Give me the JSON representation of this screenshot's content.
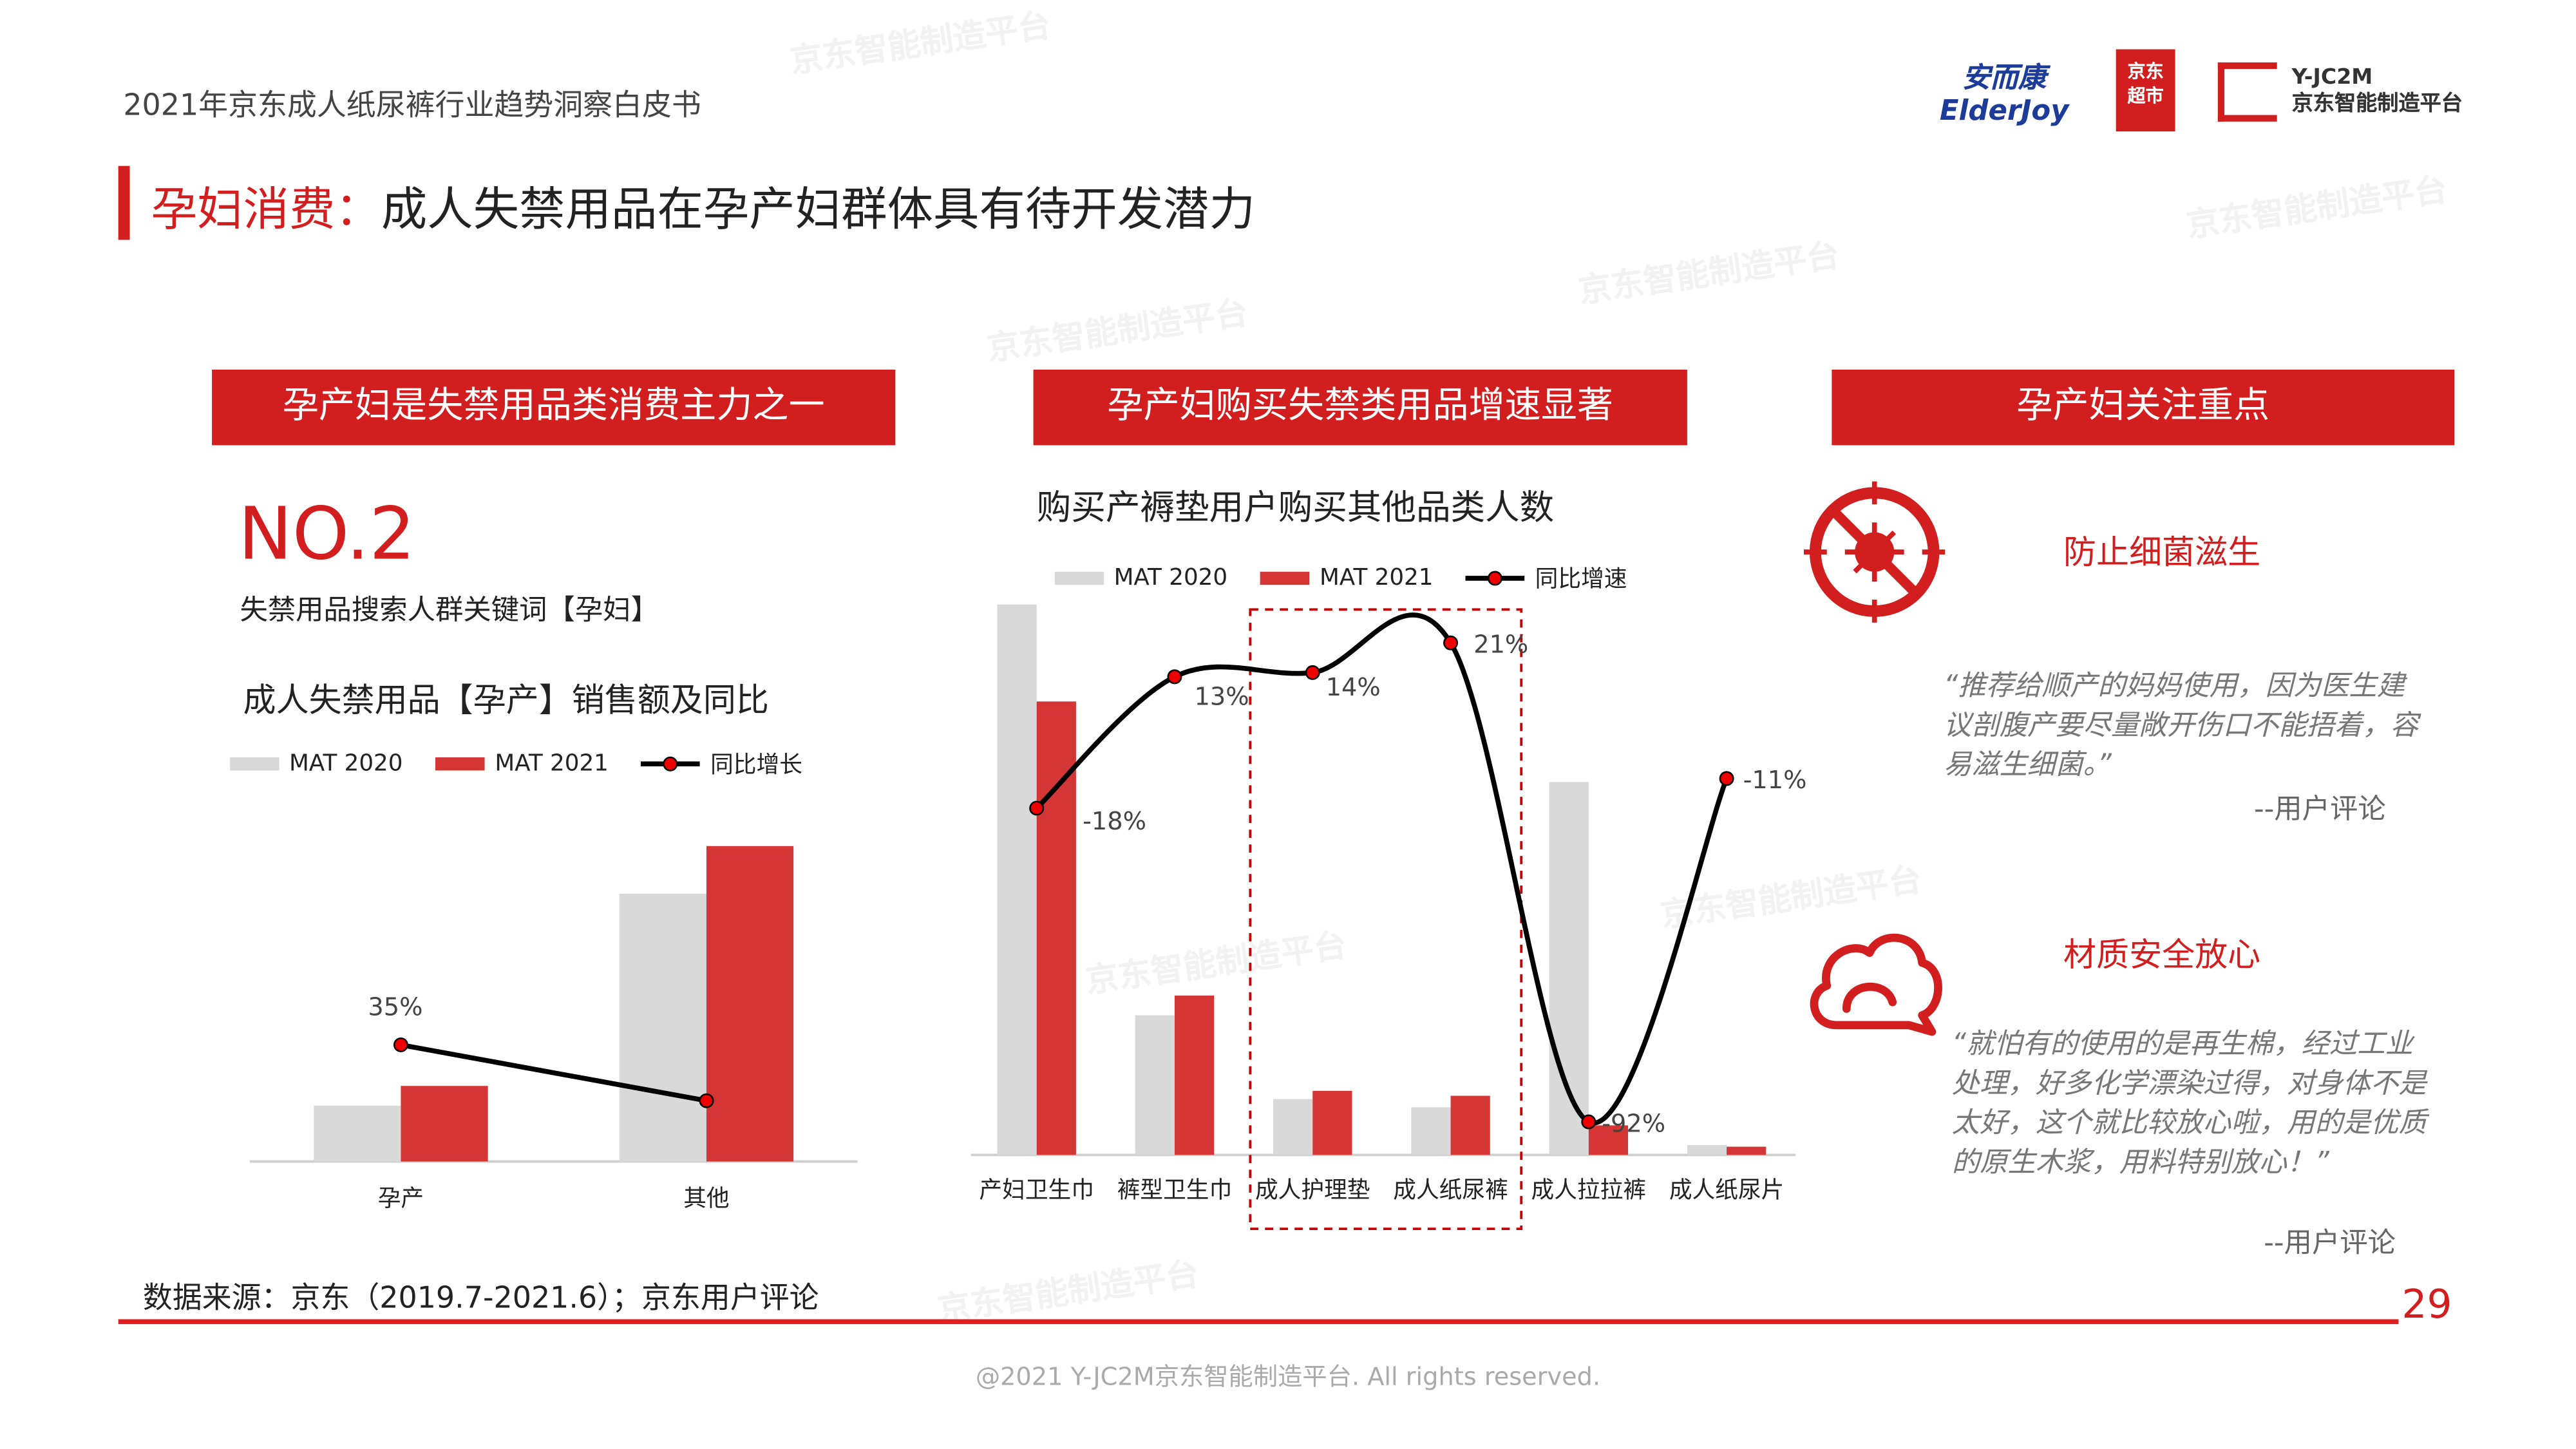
{
  "header": {
    "report_title": "2021年京东成人纸尿裤行业趋势洞察白皮书",
    "logos": {
      "elderjoy": "安而康 ElderJoy",
      "jd_supermarket": "京东 超市",
      "yjc2m_name": "Y-JC2M",
      "yjc2m_sub": "京东智能制造平台"
    }
  },
  "slide": {
    "title_keyword": "孕妇消费：",
    "title_text": "成人失禁用品在孕产妇群体具有待开发潜力",
    "accent_color": "#d21e1e"
  },
  "left": {
    "header": "孕产妇是失禁用品类消费主力之一",
    "rank": "NO.2",
    "rank_caption": "失禁用品搜索人群关键词【孕妇】",
    "chart_title": "成人失禁用品【孕产】销售额及同比"
  },
  "middle": {
    "header": "孕产妇购买失禁类用品增速显著",
    "chart_title": "购买产褥垫用户购买其他品类人数"
  },
  "right": {
    "header": "孕产妇关注重点",
    "points": [
      {
        "icon": "no-bacteria-icon",
        "title": "防止细菌滋生",
        "quote": "“推荐给顺产的妈妈使用，因为医生建议剖腹产要尽量敞开伤口不能捂着，容易滋生细菌。”",
        "source": "--用户评论"
      },
      {
        "icon": "cotton-cloud-icon",
        "title": "材质安全放心",
        "quote": "“就怕有的使用的是再生棉，经过工业处理，好多化学漂染过得，对身体不是太好，这个就比较放心啦，用的是优质的原生木浆，用料特别放心！”",
        "source": "--用户评论"
      }
    ]
  },
  "chart_data": [
    {
      "type": "bar",
      "title": "成人失禁用品【孕产】销售额及同比",
      "categories": [
        "孕产",
        "其他"
      ],
      "series": [
        {
          "name": "MAT 2020",
          "values": [
            34,
            163
          ],
          "color": "#d9d9d9"
        },
        {
          "name": "MAT 2021",
          "values": [
            46,
            192
          ],
          "color": "#d43535"
        },
        {
          "name": "同比增长",
          "type": "line",
          "values": [
            35,
            18
          ],
          "labels": [
            "35%",
            ""
          ],
          "color": "#000000"
        }
      ],
      "legend": "top-left",
      "grid": false
    },
    {
      "type": "bar",
      "title": "购买产褥垫用户购买其他品类人数",
      "categories": [
        "产妇卫生巾",
        "裤型卫生巾",
        "成人护理垫",
        "成人纸尿裤",
        "成人拉拉裤",
        "成人纸尿片"
      ],
      "series": [
        {
          "name": "MAT 2020",
          "values": [
            335,
            85,
            34,
            29,
            227,
            6
          ],
          "color": "#d9d9d9"
        },
        {
          "name": "MAT 2021",
          "values": [
            276,
            97,
            39,
            36,
            18,
            5
          ],
          "color": "#d43535"
        },
        {
          "name": "同比增速",
          "type": "line",
          "values": [
            -18,
            13,
            14,
            21,
            -92,
            -11
          ],
          "labels": [
            "-18%",
            "13%",
            "14%",
            "21%",
            "-92%",
            "-11%"
          ],
          "color": "#000000"
        }
      ],
      "highlight": [
        "成人护理垫",
        "成人纸尿裤"
      ],
      "legend": "top",
      "grid": false
    }
  ],
  "footer": {
    "source": "数据来源：京东（2019.7-2021.6）；京东用户评论",
    "page_number": "29",
    "copyright": "@2021 Y-JC2M京东智能制造平台. All rights reserved."
  }
}
